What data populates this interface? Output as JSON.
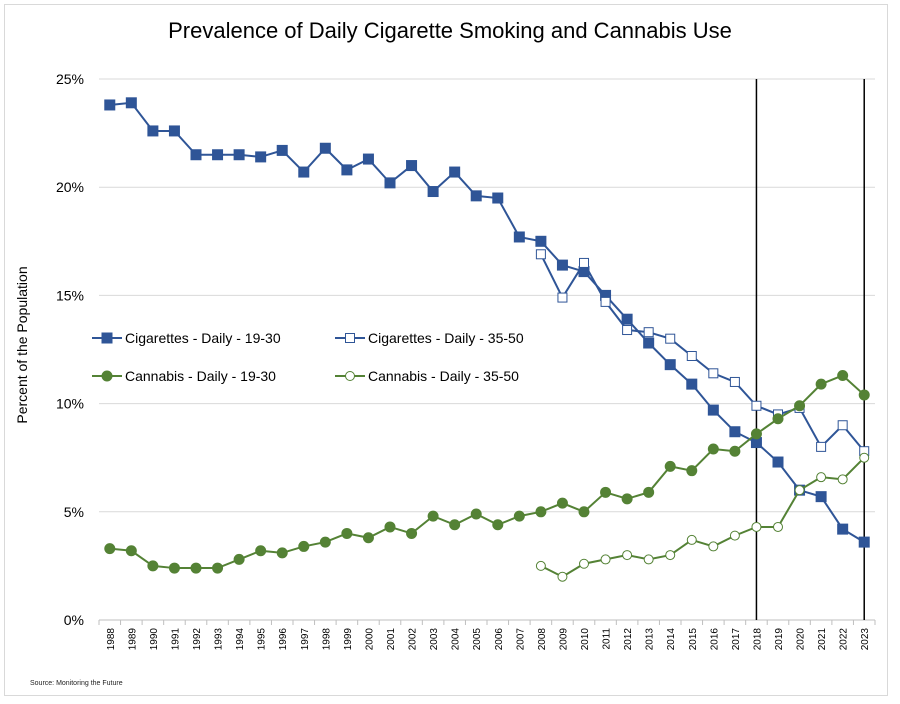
{
  "chart_data": {
    "type": "line",
    "title": "Prevalence of Daily Cigarette Smoking and Cannabis Use",
    "ylabel": "Percent of the Population",
    "source": "Source: Monitoring the Future",
    "ylim": [
      0,
      25
    ],
    "yticks": [
      "0%",
      "5%",
      "10%",
      "15%",
      "20%",
      "25%"
    ],
    "ytick_values": [
      0,
      5,
      10,
      15,
      20,
      25
    ],
    "grid": "horizontal",
    "legend_placement": "middle-left",
    "vertical_markers": [
      "2018",
      "2023"
    ],
    "x": [
      "1988",
      "1989",
      "1990",
      "1991",
      "1992",
      "1993",
      "1994",
      "1995",
      "1996",
      "1997",
      "1998",
      "1999",
      "2000",
      "2001",
      "2002",
      "2003",
      "2004",
      "2005",
      "2006",
      "2007",
      "2008",
      "2009",
      "2010",
      "2011",
      "2012",
      "2013",
      "2014",
      "2015",
      "2016",
      "2017",
      "2018",
      "2019",
      "2020",
      "2021",
      "2022",
      "2023"
    ],
    "series": [
      {
        "name": "Cigarettes - Daily - 19-30",
        "color": "#2f5597",
        "marker": "filled-square",
        "values": [
          23.8,
          23.9,
          22.6,
          22.6,
          21.5,
          21.5,
          21.5,
          21.4,
          21.7,
          20.7,
          21.8,
          20.8,
          21.3,
          20.2,
          21.0,
          19.8,
          20.7,
          19.6,
          19.5,
          17.7,
          17.5,
          16.4,
          16.1,
          15.0,
          13.9,
          12.8,
          11.8,
          10.9,
          9.7,
          8.7,
          8.2,
          7.3,
          6.0,
          5.7,
          4.2,
          3.6
        ]
      },
      {
        "name": "Cigarettes - Daily - 35-50",
        "color": "#2f5597",
        "marker": "open-square",
        "values": [
          null,
          null,
          null,
          null,
          null,
          null,
          null,
          null,
          null,
          null,
          null,
          null,
          null,
          null,
          null,
          null,
          null,
          null,
          null,
          null,
          16.9,
          14.9,
          16.5,
          14.7,
          13.4,
          13.3,
          13.0,
          12.2,
          11.4,
          11.0,
          9.9,
          9.5,
          9.8,
          8.0,
          9.0,
          7.8
        ]
      },
      {
        "name": "Cannabis - Daily - 19-30",
        "color": "#548235",
        "marker": "filled-circle",
        "values": [
          3.3,
          3.2,
          2.5,
          2.4,
          2.4,
          2.4,
          2.8,
          3.2,
          3.1,
          3.4,
          3.6,
          4.0,
          3.8,
          4.3,
          4.0,
          4.8,
          4.4,
          4.9,
          4.4,
          4.8,
          5.0,
          5.4,
          5.0,
          5.9,
          5.6,
          5.9,
          7.1,
          6.9,
          7.9,
          7.8,
          8.6,
          9.3,
          9.9,
          10.9,
          11.3,
          10.4
        ]
      },
      {
        "name": "Cannabis - Daily - 35-50",
        "color": "#548235",
        "marker": "open-circle",
        "values": [
          null,
          null,
          null,
          null,
          null,
          null,
          null,
          null,
          null,
          null,
          null,
          null,
          null,
          null,
          null,
          null,
          null,
          null,
          null,
          null,
          2.5,
          2.0,
          2.6,
          2.8,
          3.0,
          2.8,
          3.0,
          3.7,
          3.4,
          3.9,
          4.3,
          4.3,
          6.0,
          6.6,
          6.5,
          7.5
        ]
      }
    ]
  }
}
